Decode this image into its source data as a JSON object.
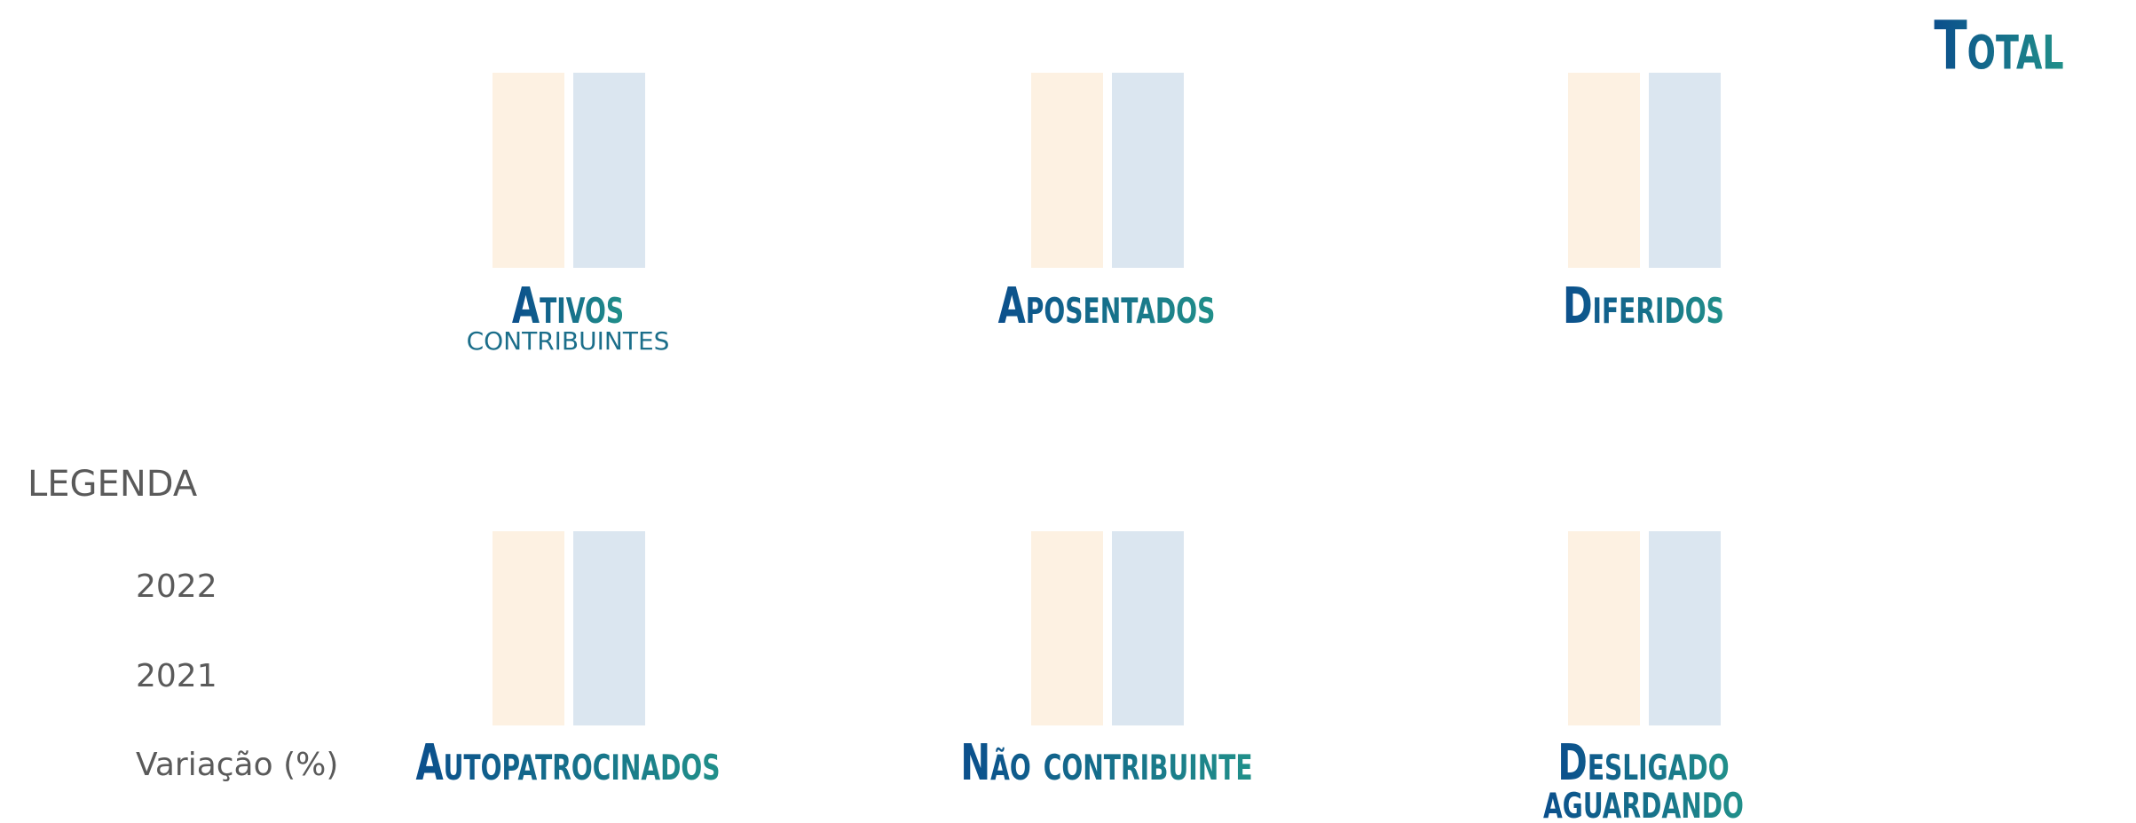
{
  "header": {
    "title": "Total"
  },
  "groups": [
    {
      "label": [
        "Ativos"
      ],
      "sublabel": "CONTRIBUINTES"
    },
    {
      "label": [
        "Aposentados"
      ]
    },
    {
      "label": [
        "Diferidos"
      ]
    },
    {
      "label": [
        "Autopatrocinados"
      ]
    },
    {
      "label": [
        "Não contribuinte"
      ]
    },
    {
      "label": [
        "Desligado",
        "aguardando"
      ]
    }
  ],
  "legend": {
    "title": "LEGENDA",
    "items": [
      "2022",
      "2021",
      "Variação (%)"
    ]
  }
}
